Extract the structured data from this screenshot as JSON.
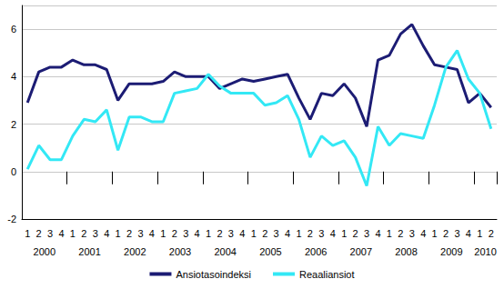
{
  "chart_data": {
    "type": "line",
    "categories": [
      "1",
      "2",
      "3",
      "4",
      "1",
      "2",
      "3",
      "4",
      "1",
      "2",
      "3",
      "4",
      "1",
      "2",
      "3",
      "4",
      "1",
      "2",
      "3",
      "4",
      "1",
      "2",
      "3",
      "4",
      "1",
      "2",
      "3",
      "4",
      "1",
      "2",
      "3",
      "4",
      "1",
      "2",
      "3",
      "4",
      "1",
      "2",
      "3",
      "4",
      "1",
      "2"
    ],
    "years": [
      "2000",
      "2001",
      "2002",
      "2003",
      "2004",
      "2005",
      "2006",
      "2007",
      "2008",
      "2009",
      "2010"
    ],
    "series": [
      {
        "name": "Ansiotasoindeksi",
        "color": "#1c1c74",
        "values": [
          2.9,
          4.2,
          4.4,
          4.4,
          4.7,
          4.5,
          4.5,
          4.3,
          3.0,
          3.7,
          3.7,
          3.7,
          3.8,
          4.2,
          4.0,
          4.0,
          4.0,
          3.5,
          3.7,
          3.9,
          3.8,
          3.9,
          4.0,
          4.1,
          3.1,
          2.2,
          3.3,
          3.2,
          3.7,
          3.1,
          1.9,
          4.7,
          4.9,
          5.8,
          6.2,
          5.3,
          4.5,
          4.4,
          4.3,
          2.9,
          3.3,
          2.7
        ]
      },
      {
        "name": "Reaaliansiot",
        "color": "#33e8f5",
        "values": [
          0.1,
          1.1,
          0.5,
          0.5,
          1.5,
          2.2,
          2.1,
          2.6,
          0.9,
          2.3,
          2.3,
          2.1,
          2.1,
          3.3,
          3.4,
          3.5,
          4.1,
          3.6,
          3.3,
          3.3,
          3.3,
          2.8,
          2.9,
          3.2,
          2.2,
          0.6,
          1.5,
          1.1,
          1.3,
          0.6,
          -0.6,
          1.9,
          1.1,
          1.6,
          1.5,
          1.4,
          2.8,
          4.4,
          5.1,
          3.9,
          3.3,
          1.8
        ]
      }
    ],
    "ylim": [
      -2,
      7
    ],
    "yticks": [
      -2,
      0,
      2,
      4,
      6
    ],
    "grid": true,
    "legend": "bottom"
  }
}
